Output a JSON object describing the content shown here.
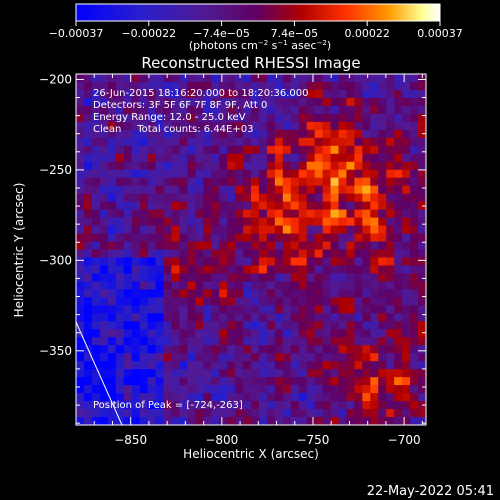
{
  "chart_data": {
    "type": "heatmap",
    "title": "Reconstructed RHESSI Image",
    "xlabel": "Heliocentric X (arcsec)",
    "ylabel": "Heliocentric Y (arcsec)",
    "xlim": [
      -880,
      -688
    ],
    "ylim": [
      -391,
      -197
    ],
    "x_ticks": [
      -850,
      -800,
      -750,
      -700
    ],
    "y_ticks": [
      -200,
      -250,
      -300,
      -350
    ],
    "x_tick_labels": [
      "−850",
      "−800",
      "−750",
      "−700"
    ],
    "y_tick_labels": [
      "−200",
      "−250",
      "−300",
      "−350"
    ],
    "colorbar": {
      "ticks": [
        "−0.00037",
        "−0.00022",
        "−7.4e−05",
        "7.4e−05",
        "0.00022",
        "0.00037"
      ],
      "range": [
        -0.00037,
        0.00037
      ],
      "unit_label_main": "(photons cm",
      "unit_sup1": "−2",
      "unit_mid": " s",
      "unit_sup2": "−1",
      "unit_mid2": " asec",
      "unit_sup3": "−2",
      "unit_end": ")",
      "colors": [
        "#0000ff",
        "#4020a0",
        "#600070",
        "#b00000",
        "#ff4000",
        "#ffa000",
        "#ffffa0",
        "#ffffff"
      ]
    },
    "annotations": [
      "26-Jun-2015 18:16:20.000 to 18:20:36.000",
      "Detectors: 3F 5F 6F 7F 8F 9F, Att 0",
      "Energy Range: 12.0 - 25.0 keV",
      "Clean     Total counts: 6.44E+03"
    ],
    "peak_label": "Position of Peak = [-724,-263]",
    "peak_position": [
      -724,
      -263
    ]
  },
  "footer": {
    "timestamp": "22-May-2022 05:41"
  }
}
